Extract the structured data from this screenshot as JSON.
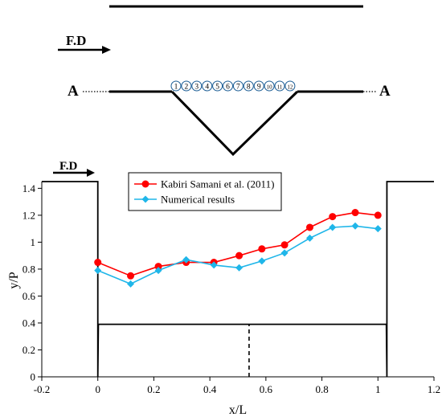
{
  "schematic": {
    "flow_label": "F.D",
    "section_left": "A",
    "section_right": "A",
    "point_labels": [
      "1",
      "2",
      "3",
      "4",
      "5",
      "6",
      "7",
      "8",
      "9",
      "10",
      "11",
      "12"
    ]
  },
  "chart_data": {
    "type": "line",
    "xlabel": "x/L",
    "ylabel": "y/P",
    "xlim": [
      -0.2,
      1.2
    ],
    "ylim": [
      0,
      1.45
    ],
    "xticks": [
      "-0.2",
      "0",
      "0.2",
      "0.4",
      "0.6",
      "0.8",
      "1",
      "1.2"
    ],
    "yticks": [
      "0",
      "0.2",
      "0.4",
      "0.6",
      "0.8",
      "1",
      "1.2",
      "1.4"
    ],
    "flow_label": "F.D",
    "legend_position": "top-center",
    "grid": false,
    "series": [
      {
        "name": "Kabiri Samani et al. (2011)",
        "color": "#ff0000",
        "marker": "circle",
        "x": [
          0,
          0.13,
          0.24,
          0.35,
          0.46,
          0.56,
          0.65,
          0.74,
          0.84,
          0.93,
          1.02,
          1.11
        ],
        "y": [
          0.85,
          0.75,
          0.82,
          0.85,
          0.85,
          0.9,
          0.95,
          0.98,
          1.11,
          1.19,
          1.22,
          1.2
        ]
      },
      {
        "name": "Numerical results",
        "color": "#1fb6e9",
        "marker": "diamond",
        "x": [
          0,
          0.13,
          0.24,
          0.35,
          0.46,
          0.56,
          0.65,
          0.74,
          0.84,
          0.93,
          1.02,
          1.11
        ],
        "y": [
          0.79,
          0.69,
          0.79,
          0.87,
          0.83,
          0.81,
          0.86,
          0.92,
          1.03,
          1.11,
          1.12,
          1.1
        ]
      }
    ],
    "weir_profile": {
      "x": [
        -0.2,
        0,
        0,
        0.002,
        1.03,
        1.032,
        1.032,
        1.2
      ],
      "y": [
        1.45,
        1.45,
        0,
        0.39,
        0.39,
        0,
        1.45,
        1.45
      ]
    },
    "centerline": {
      "x": 0.54,
      "y": [
        0,
        0.39
      ]
    }
  }
}
